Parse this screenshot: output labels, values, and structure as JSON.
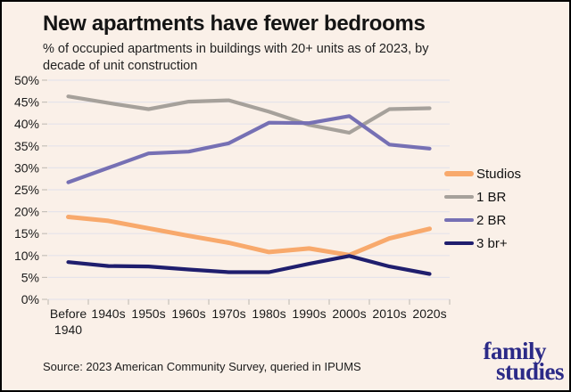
{
  "header": {
    "title": "New apartments have fewer bedrooms",
    "subtitle_line1": "% of occupied apartments in buildings with 20+ units as of 2023, by",
    "subtitle_line2": "decade of unit construction"
  },
  "chart_data": {
    "type": "line",
    "title": "New apartments have fewer bedrooms",
    "subtitle": "% of occupied apartments in buildings with 20+ units as of 2023, by decade of unit construction",
    "categories": [
      "Before 1940",
      "1940s",
      "1950s",
      "1960s",
      "1970s",
      "1980s",
      "1990s",
      "2000s",
      "2010s",
      "2020s"
    ],
    "series": [
      {
        "name": "Studios",
        "color": "#F8A96C",
        "values": [
          18.8,
          17.9,
          16.2,
          14.5,
          12.9,
          10.8,
          11.6,
          10.1,
          13.9,
          16.1
        ]
      },
      {
        "name": "1 BR",
        "color": "#A6A19B",
        "values": [
          46.3,
          44.8,
          43.4,
          45.1,
          45.4,
          42.8,
          39.8,
          38.0,
          43.4,
          43.6
        ]
      },
      {
        "name": "2 BR",
        "color": "#7670B4",
        "values": [
          26.7,
          30.0,
          33.3,
          33.7,
          35.6,
          40.3,
          40.2,
          41.8,
          35.3,
          34.4
        ]
      },
      {
        "name": "3 br+",
        "color": "#1F1E6E",
        "values": [
          8.5,
          7.6,
          7.5,
          6.8,
          6.2,
          6.2,
          8.1,
          9.9,
          7.5,
          5.8
        ]
      }
    ],
    "xlabel": "",
    "ylabel": "",
    "ylim": [
      0,
      50
    ],
    "y_tick_step": 5,
    "y_tick_suffix": "%",
    "grid": true,
    "legend_position": "right"
  },
  "footer": {
    "source": "Source: 2023 American Community Survey, queried in IPUMS",
    "logo_line1": "family",
    "logo_line2": "studies"
  },
  "colors": {
    "background": "#FAF0E8",
    "grid": "#E5E3EA",
    "tick": "#C6C1BA",
    "text": "#1A1A1A",
    "logo": "#2B2A87"
  }
}
